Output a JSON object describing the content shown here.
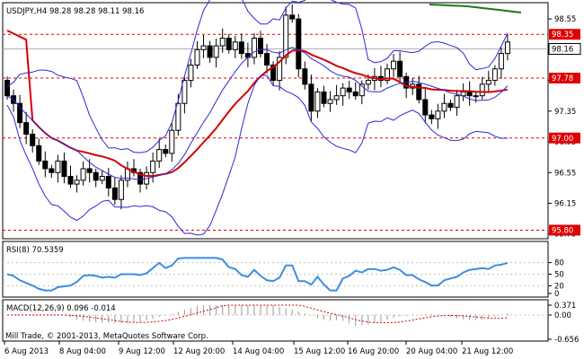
{
  "main_chart": {
    "header": "USDJPY,H4  98.28 98.28 98.11 98.16",
    "y_ticks": [
      "98.55",
      "98.15",
      "97.75",
      "97.35",
      "96.95",
      "96.55",
      "96.15",
      "95.75"
    ],
    "levels": [
      {
        "label": "98.35",
        "value": 98.35,
        "color": "#e00000"
      },
      {
        "label": "97.78",
        "value": 97.78,
        "color": "#e00000"
      },
      {
        "label": "97.00",
        "value": 97.0,
        "color": "#e00000"
      },
      {
        "label": "95.80",
        "value": 95.8,
        "color": "#e00000"
      }
    ],
    "current_price": {
      "label": "98.16",
      "value": 98.16
    }
  },
  "rsi_panel": {
    "header": "RSI(8) 70.5359",
    "y_ticks": [
      "80",
      "50",
      "20",
      "0"
    ]
  },
  "macd_panel": {
    "header": "MACD(12,26,9) 0.096 -0.014",
    "y_ticks": [
      "0.371",
      "0.00",
      "-0.656"
    ]
  },
  "footer": {
    "copyright": "Mill Trade, © 2001-2013, MetaQuotes Software Corp."
  },
  "x_axis": {
    "labels": [
      "6 Aug 2013",
      "8 Aug 04:00",
      "9 Aug 12:00",
      "12 Aug 20:00",
      "14 Aug 04:00",
      "15 Aug 12:00",
      "16 Aug 20:00",
      "20 Aug 04:00",
      "21 Aug 12:00"
    ]
  },
  "colors": {
    "candle_body": "#000000",
    "bollinger": "#2a2ad8",
    "moving_average": "#d40000",
    "long_average": "#1a7a1a",
    "rsi_line": "#3c8ee0",
    "macd_histogram": "#9a9a9a",
    "macd_signal": "#d40000",
    "level_line": "#e00000",
    "grid_dash": "#c0c0c0"
  }
}
